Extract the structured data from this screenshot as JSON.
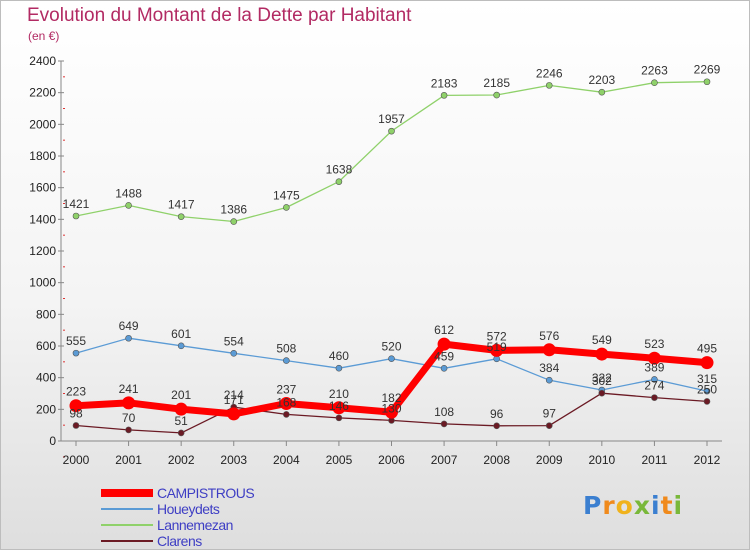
{
  "title": "Evolution du Montant de la Dette par Habitant",
  "subtitle": "(en €)",
  "brand": {
    "letters": [
      "P",
      "r",
      "o",
      "x",
      "i",
      "t",
      "i"
    ],
    "colors": [
      "#3b7fd0",
      "#f08a1c",
      "#f0b21c",
      "#79b83a",
      "#3b7fd0",
      "#f08a1c",
      "#79b83a"
    ]
  },
  "chart_data": {
    "type": "line",
    "x": [
      2000,
      2001,
      2002,
      2003,
      2004,
      2005,
      2006,
      2007,
      2008,
      2009,
      2010,
      2011,
      2012
    ],
    "ylim": [
      0,
      2400
    ],
    "yticks": [
      0,
      200,
      400,
      600,
      800,
      1000,
      1200,
      1400,
      1600,
      1800,
      2000,
      2200,
      2400
    ],
    "grid": false,
    "legend": "bottom-left",
    "series": [
      {
        "name": "Houeydets",
        "color": "#5b9bd5",
        "values": [
          555,
          649,
          601,
          554,
          508,
          460,
          520,
          459,
          519,
          384,
          322,
          389,
          315
        ]
      },
      {
        "name": "Lannemezan",
        "color": "#8fd16a",
        "values": [
          1421,
          1488,
          1417,
          1386,
          1475,
          1638,
          1957,
          2183,
          2185,
          2246,
          2203,
          2263,
          2269
        ]
      },
      {
        "name": "Clarens",
        "color": "#6b1a24",
        "values": [
          98,
          70,
          51,
          214,
          168,
          146,
          130,
          108,
          96,
          97,
          302,
          274,
          250
        ]
      },
      {
        "name": "CAMPISTROUS",
        "color": "#ff0000",
        "values": [
          223,
          241,
          201,
          171,
          237,
          210,
          182,
          612,
          572,
          576,
          549,
          523,
          495
        ]
      }
    ],
    "legend_order": [
      "CAMPISTROUS",
      "Houeydets",
      "Lannemezan",
      "Clarens"
    ]
  }
}
